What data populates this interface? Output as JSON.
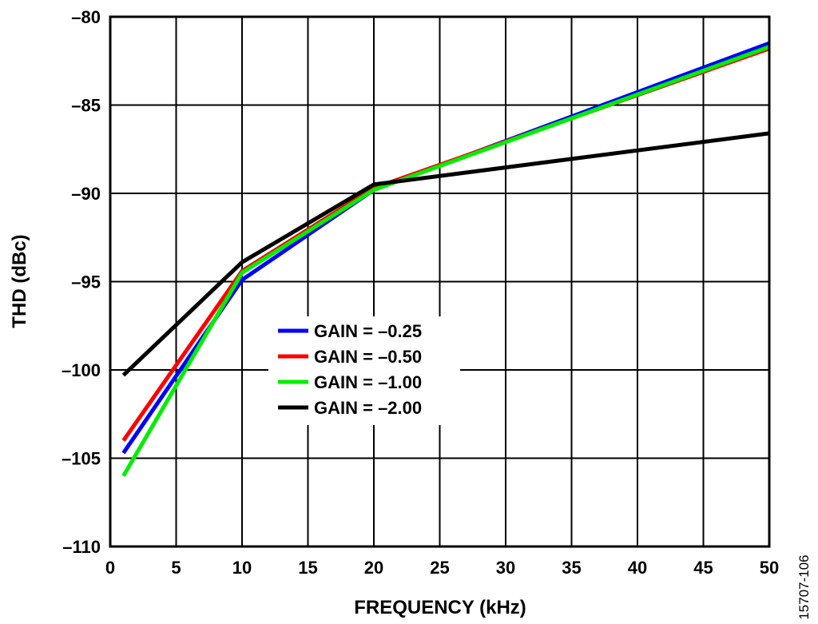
{
  "chart_data": {
    "type": "line",
    "xlabel": "FREQUENCY (kHz)",
    "ylabel": "THD (dBc)",
    "xlim": [
      0,
      50
    ],
    "ylim": [
      -110,
      -80
    ],
    "xticks": [
      0,
      5,
      10,
      15,
      20,
      25,
      30,
      35,
      40,
      45,
      50
    ],
    "yticks": [
      -80,
      -85,
      -90,
      -95,
      -100,
      -105,
      -110
    ],
    "ytick_labels": [
      "–80",
      "–85",
      "–90",
      "–95",
      "–100",
      "–105",
      "–110"
    ],
    "grid": true,
    "legend_position": "center",
    "x": [
      1,
      10,
      20,
      50
    ],
    "series": [
      {
        "name": "GAIN = –0.25",
        "color": "#0000ff",
        "values": [
          -104.7,
          -94.9,
          -89.8,
          -81.5
        ]
      },
      {
        "name": "GAIN = –0.50",
        "color": "#ff0000",
        "values": [
          -104.0,
          -94.4,
          -89.7,
          -81.8
        ]
      },
      {
        "name": "GAIN = –1.00",
        "color": "#00ee00",
        "values": [
          -106.0,
          -94.5,
          -89.8,
          -81.7
        ]
      },
      {
        "name": "GAIN = –2.00",
        "color": "#000000",
        "values": [
          -100.3,
          -93.9,
          -89.5,
          -86.6
        ]
      }
    ]
  },
  "figure_id": "15707-106"
}
